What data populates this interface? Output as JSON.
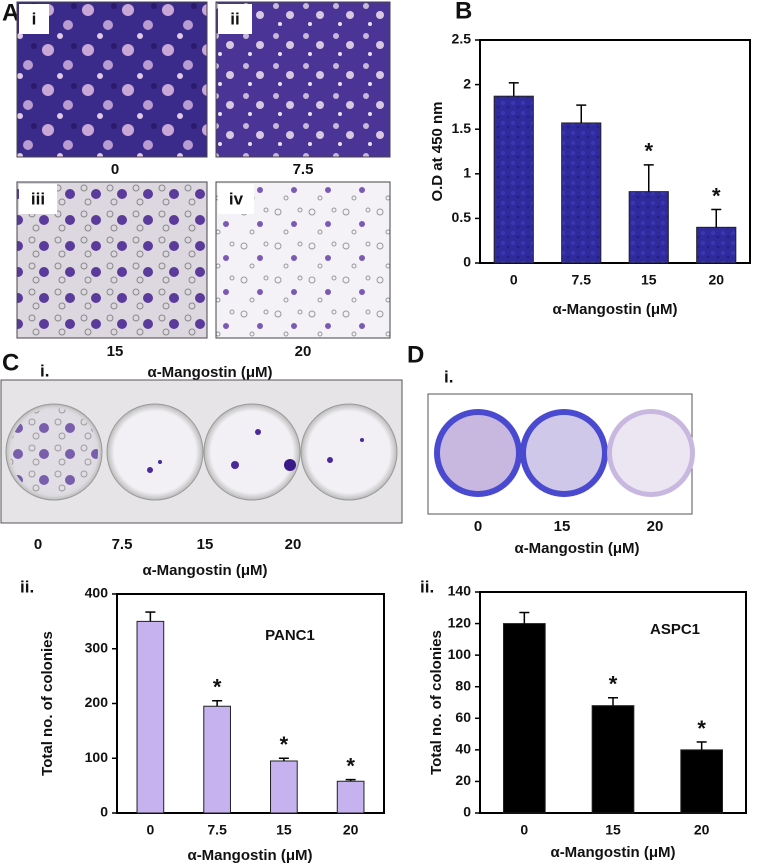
{
  "panel_labels": [
    "A",
    "B",
    "C",
    "D"
  ],
  "panel_a": {
    "images": [
      {
        "label": "i",
        "caption": "0"
      },
      {
        "label": "ii",
        "caption": "7.5"
      },
      {
        "label": "iii",
        "caption": "15"
      },
      {
        "label": "iv",
        "caption": "20"
      }
    ],
    "xlabel": "α-Mangostin (μM)"
  },
  "panel_c": {
    "photo_label": "i.",
    "chart_label": "ii.",
    "captions": [
      "0",
      "7.5",
      "15",
      "20"
    ],
    "xlabel": "α-Mangostin (μM)"
  },
  "panel_d": {
    "photo_label": "i.",
    "chart_label": "ii.",
    "captions": [
      "0",
      "15",
      "20"
    ],
    "xlabel": "α-Mangostin (μM)"
  },
  "chart_data": [
    {
      "type": "bar",
      "ylabel": "O.D at 450 nm",
      "xlabel": "α-Mangostin (μM)",
      "categories": [
        "0",
        "7.5",
        "15",
        "20"
      ],
      "values": [
        1.87,
        1.57,
        0.8,
        0.4
      ],
      "errors": [
        0.15,
        0.2,
        0.3,
        0.2
      ],
      "significance": [
        null,
        null,
        "*",
        "*"
      ],
      "color": "#2f2b9c",
      "ylim": [
        0,
        2.5
      ],
      "yticks": [
        0,
        0.5,
        1,
        1.5,
        2,
        2.5
      ]
    },
    {
      "type": "bar",
      "title": "PANC1",
      "ylabel": "Total no. of colonies",
      "xlabel": "α-Mangostin (μM)",
      "categories": [
        "0",
        "7.5",
        "15",
        "20"
      ],
      "values": [
        350,
        195,
        95,
        58
      ],
      "errors": [
        17,
        10,
        5,
        3
      ],
      "significance": [
        null,
        "*",
        "*",
        "*"
      ],
      "color": "#c6b2ef",
      "ylim": [
        0,
        400
      ],
      "yticks": [
        0,
        100,
        200,
        300,
        400
      ]
    },
    {
      "type": "bar",
      "title": "ASPC1",
      "ylabel": "Total no. of colonies",
      "xlabel": "α-Mangostin (μM)",
      "categories": [
        "0",
        "15",
        "20"
      ],
      "values": [
        120,
        68,
        40
      ],
      "errors": [
        7,
        5,
        5
      ],
      "significance": [
        null,
        "*",
        "*"
      ],
      "color": "#000000",
      "ylim": [
        0,
        140
      ],
      "yticks": [
        0,
        20,
        40,
        60,
        80,
        100,
        120,
        140
      ]
    }
  ]
}
